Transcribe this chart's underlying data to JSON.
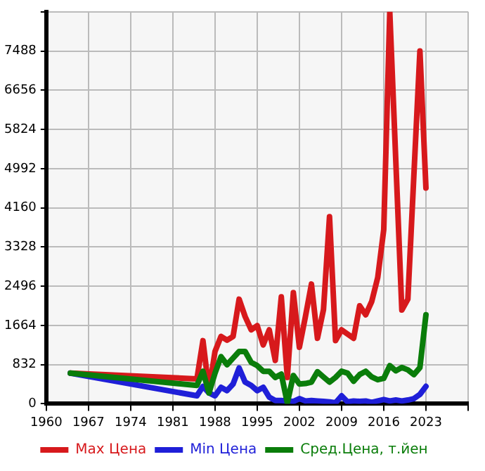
{
  "chart_data": {
    "type": "line",
    "xlim": [
      1960,
      2030
    ],
    "xticks": [
      1960,
      1967,
      1974,
      1981,
      1988,
      1995,
      2002,
      2009,
      2016,
      2023,
      {
        "value": 2030,
        "label": null
      }
    ],
    "ylim": [
      0,
      8320
    ],
    "yticks": [
      0,
      832,
      1664,
      2496,
      3328,
      4160,
      4992,
      5824,
      6656,
      7488,
      {
        "value": 8320,
        "label": null
      }
    ],
    "grid": true,
    "legend": "bottom",
    "marker": "none",
    "line_style": "solid",
    "series": [
      {
        "name": "Max Цена",
        "color": "#d7191c",
        "x": [
          1964,
          1985,
          1986,
          1987,
          1988,
          1989,
          1990,
          1991,
          1992,
          1993,
          1994,
          1995,
          1996,
          1997,
          1998,
          1999,
          2000,
          2001,
          2002,
          2003,
          2004,
          2005,
          2006,
          2007,
          2008,
          2009,
          2010,
          2011,
          2012,
          2013,
          2014,
          2015,
          2016,
          2017,
          2019,
          2020,
          2022,
          2023
        ],
        "values": [
          650,
          530,
          1340,
          280,
          1110,
          1430,
          1350,
          1430,
          2220,
          1850,
          1570,
          1660,
          1250,
          1570,
          920,
          2270,
          560,
          2360,
          1200,
          1850,
          2540,
          1390,
          2000,
          3970,
          1340,
          1570,
          1480,
          1390,
          2080,
          1890,
          2170,
          2680,
          3700,
          8320,
          1990,
          2220,
          7490,
          4580
        ]
      },
      {
        "name": "Min Цена",
        "color": "#1f1fd8",
        "x": [
          1964,
          1985,
          1986,
          1987,
          1988,
          1989,
          1990,
          1991,
          1992,
          1993,
          1994,
          1995,
          1996,
          1997,
          1998,
          1999,
          2000,
          2001,
          2002,
          2003,
          2004,
          2005,
          2006,
          2007,
          2008,
          2009,
          2010,
          2011,
          2012,
          2013,
          2014,
          2015,
          2016,
          2017,
          2018,
          2019,
          2020,
          2021,
          2022,
          2023
        ],
        "values": [
          650,
          170,
          370,
          230,
          170,
          350,
          280,
          420,
          760,
          460,
          390,
          280,
          350,
          140,
          70,
          70,
          60,
          50,
          110,
          60,
          70,
          60,
          50,
          40,
          20,
          170,
          40,
          60,
          50,
          60,
          30,
          60,
          90,
          60,
          80,
          60,
          80,
          110,
          200,
          370
        ]
      },
      {
        "name": "Сред.Цена, т.йен",
        "color": "#0a7d0a",
        "x": [
          1964,
          1985,
          1986,
          1987,
          1988,
          1989,
          1990,
          1991,
          1992,
          1993,
          1994,
          1995,
          1996,
          1997,
          1998,
          1999,
          2000,
          2001,
          2002,
          2003,
          2004,
          2005,
          2006,
          2007,
          2008,
          2009,
          2010,
          2011,
          2012,
          2013,
          2014,
          2015,
          2016,
          2017,
          2018,
          2019,
          2020,
          2021,
          2022,
          2023
        ],
        "values": [
          650,
          390,
          690,
          230,
          650,
          1000,
          830,
          970,
          1110,
          1110,
          880,
          810,
          690,
          690,
          560,
          630,
          20,
          600,
          420,
          430,
          460,
          680,
          570,
          460,
          560,
          690,
          650,
          480,
          620,
          690,
          570,
          510,
          540,
          810,
          700,
          770,
          720,
          620,
          770,
          1890
        ]
      }
    ]
  }
}
